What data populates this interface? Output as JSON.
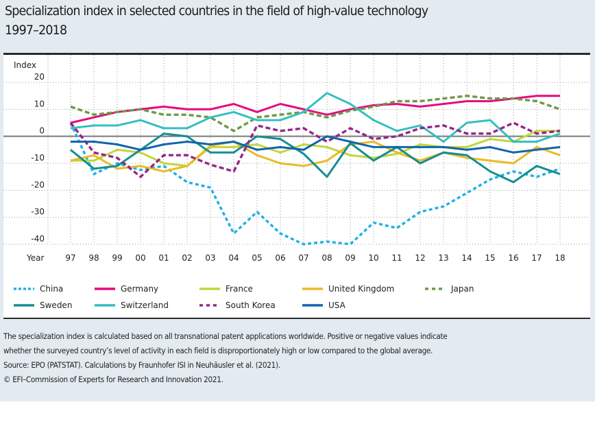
{
  "header": {
    "title_line1": "Specialization index in selected countries in the field of high-value technology",
    "title_line2": "1997–2018"
  },
  "chart_data": {
    "type": "line",
    "title": "Specialization index in selected countries in the field of high-value technology 1997–2018",
    "xlabel": "Year",
    "ylabel": "Index",
    "x": [
      "97",
      "98",
      "99",
      "00",
      "01",
      "02",
      "03",
      "04",
      "05",
      "06",
      "07",
      "08",
      "09",
      "10",
      "11",
      "12",
      "13",
      "14",
      "15",
      "16",
      "17",
      "18"
    ],
    "ylim": [
      -40,
      20
    ],
    "yticks": [
      20,
      10,
      0,
      -10,
      -20,
      -30,
      -40
    ],
    "grid": true,
    "legend_position": "bottom",
    "series": [
      {
        "name": "China",
        "color": "#1fb0e6",
        "style": "dotted",
        "values": [
          5,
          -14,
          -10,
          -12.5,
          -11,
          -17,
          -19,
          -36,
          -28,
          -36,
          -40,
          -39,
          -40,
          -32,
          -34,
          -28,
          -26,
          -21,
          -16,
          -13,
          -15,
          -12
        ]
      },
      {
        "name": "Germany",
        "color": "#e5097f",
        "style": "solid",
        "values": [
          5,
          7,
          9,
          10,
          11,
          10,
          10,
          12,
          9,
          12,
          10,
          8,
          10,
          11.5,
          12,
          11,
          12,
          13,
          13,
          14,
          15,
          15
        ]
      },
      {
        "name": "France",
        "color": "#c3d63a",
        "style": "solid",
        "values": [
          -9,
          -9,
          -5,
          -6,
          -10,
          -11,
          -4,
          -4,
          -3,
          -6,
          -3,
          -4,
          -7,
          -8,
          -6.5,
          -3,
          -4,
          -4,
          -1,
          -2,
          2,
          2
        ]
      },
      {
        "name": "United Kingdom",
        "color": "#e9bb26",
        "style": "solid",
        "values": [
          -9,
          -7,
          -12,
          -11,
          -13,
          -11,
          -3.5,
          -2,
          -7,
          -10,
          -11,
          -9,
          -3,
          -2,
          -6,
          -9,
          -6,
          -8,
          -9,
          -10,
          -4,
          -7
        ]
      },
      {
        "name": "Japan",
        "color": "#6a9a45",
        "style": "dashed",
        "values": [
          11,
          8,
          9,
          10,
          8,
          8,
          7,
          2,
          7,
          8,
          9,
          7,
          9.5,
          11,
          13,
          13,
          14,
          15,
          14,
          14,
          13,
          10
        ]
      },
      {
        "name": "Sweden",
        "color": "#148e92",
        "style": "solid",
        "values": [
          -5,
          -12,
          -11,
          -5,
          1,
          0,
          -6,
          -6,
          0,
          -1,
          -6.5,
          -15,
          -2.5,
          -9,
          -4,
          -10,
          -6,
          -7,
          -13,
          -17,
          -11,
          -14
        ]
      },
      {
        "name": "Switzerland",
        "color": "#35bfc0",
        "style": "solid",
        "values": [
          3,
          4,
          4,
          6,
          3,
          3,
          7,
          9,
          6,
          6,
          9,
          16,
          12,
          6,
          2,
          4,
          -2,
          5,
          6,
          -2,
          -2,
          1
        ]
      },
      {
        "name": "South Korea",
        "color": "#962787",
        "style": "dashed",
        "values": [
          5,
          -6,
          -8,
          -15,
          -7,
          -7,
          -10.5,
          -13,
          4,
          2,
          3,
          -2,
          3,
          -1,
          0,
          3,
          4,
          1,
          1,
          5,
          1,
          2
        ]
      },
      {
        "name": "USA",
        "color": "#1064ae",
        "style": "solid",
        "values": [
          -2,
          -2,
          -3,
          -5,
          -3,
          -2,
          -3,
          -2,
          -5,
          -4,
          -5,
          0,
          -2,
          -4,
          -4,
          -4,
          -4,
          -5,
          -4,
          -6,
          -5,
          -4
        ]
      }
    ]
  },
  "legend": {
    "rows": [
      [
        "China",
        "Germany",
        "France",
        "United Kingdom",
        "Japan"
      ],
      [
        "Sweden",
        "Switzerland",
        "South Korea",
        "USA"
      ]
    ]
  },
  "footer": {
    "note_line1": "The specialization index is calculated based on all transnational patent applications worldwide. Positive or negative values indicate",
    "note_line2": "whether the surveyed country’s level of activity in each field is disproportionately high or low compared to the global average.",
    "source": "Source: EPO (PATSTAT). Calculations by Fraunhofer ISI in Neuhäusler et al. (2021).",
    "copyright": "© EFI–Commission of Experts for Research and Innovation 2021."
  }
}
